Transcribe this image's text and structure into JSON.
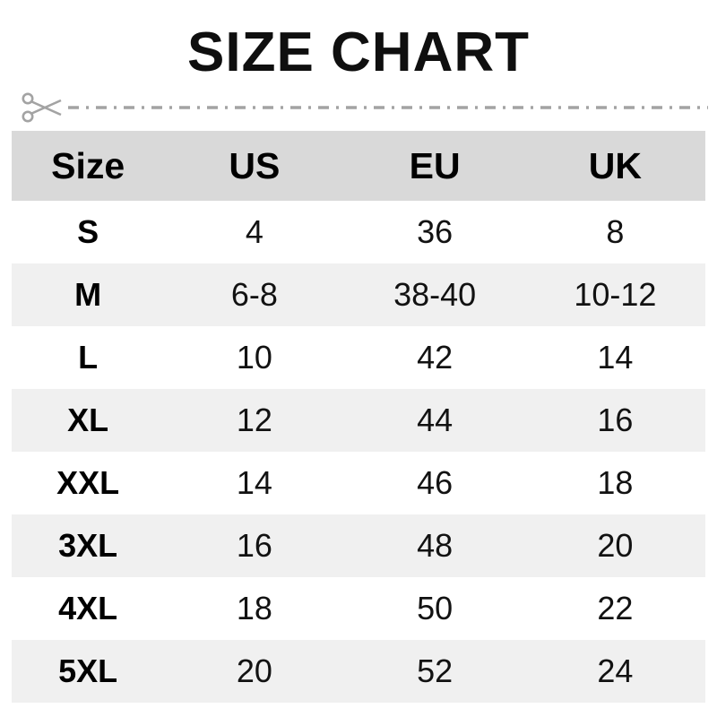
{
  "title": "SIZE CHART",
  "cut_line": {
    "icon": "scissors-icon",
    "style": "dash-dot"
  },
  "table": {
    "columns": [
      "Size",
      "US",
      "EU",
      "UK"
    ],
    "rows": [
      {
        "size": "S",
        "us": "4",
        "eu": "36",
        "uk": "8"
      },
      {
        "size": "M",
        "us": "6-8",
        "eu": "38-40",
        "uk": "10-12"
      },
      {
        "size": "L",
        "us": "10",
        "eu": "42",
        "uk": "14"
      },
      {
        "size": "XL",
        "us": "12",
        "eu": "44",
        "uk": "16"
      },
      {
        "size": "XXL",
        "us": "14",
        "eu": "46",
        "uk": "18"
      },
      {
        "size": "3XL",
        "us": "16",
        "eu": "48",
        "uk": "20"
      },
      {
        "size": "4XL",
        "us": "18",
        "eu": "50",
        "uk": "22"
      },
      {
        "size": "5XL",
        "us": "20",
        "eu": "52",
        "uk": "24"
      }
    ]
  },
  "colors": {
    "header_bg": "#d9d9d9",
    "alt_row_bg": "#f0f0f0",
    "title_text": "#0f0f0f",
    "cell_text": "#121212",
    "cut_line": "#a3a3a3"
  }
}
